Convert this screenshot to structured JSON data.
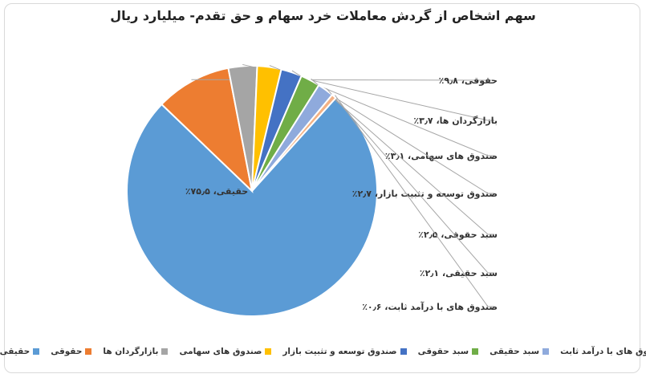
{
  "chart_data": {
    "type": "pie",
    "title": "سهم اشخاص از گردش معاملات خرد سهام و حق تقدم- میلیارد ریال",
    "slices": [
      {
        "name": "حقیقی",
        "value": 75.5,
        "label": "حقیقی، ۷۵٫۵٪",
        "color": "#5b9bd5"
      },
      {
        "name": "حقوقی",
        "value": 9.8,
        "label": "حقوقی، ۹٫۸٪",
        "color": "#ed7d31"
      },
      {
        "name": "بازارگردان ها",
        "value": 3.7,
        "label": "بازارگردان ها، ۳٫۷٪",
        "color": "#a5a5a5"
      },
      {
        "name": "صندوق های سهامی",
        "value": 3.1,
        "label": "صندوق های سهامی، ۳٫۱٪",
        "color": "#ffc000"
      },
      {
        "name": "صندوق توسعه و تثبیت بازار",
        "value": 2.7,
        "label": "صندوق توسعه و تثبیت بازار، ۲٫۷٪",
        "color": "#4472c4"
      },
      {
        "name": "سبد حقوقی",
        "value": 2.5,
        "label": "سبد حقوقی، ۲٫۵٪",
        "color": "#70ad47"
      },
      {
        "name": "سبد حقیقی",
        "value": 2.1,
        "label": "سبد حقیقی، ۲٫۱٪",
        "color": "#8faadc"
      },
      {
        "name": "صندوق های با درآمد ثابت",
        "value": 0.6,
        "label": "صندوق های با درآمد ثابت، ۰٫۶٪",
        "color": "#f4b183"
      }
    ],
    "legend_position": "bottom"
  }
}
